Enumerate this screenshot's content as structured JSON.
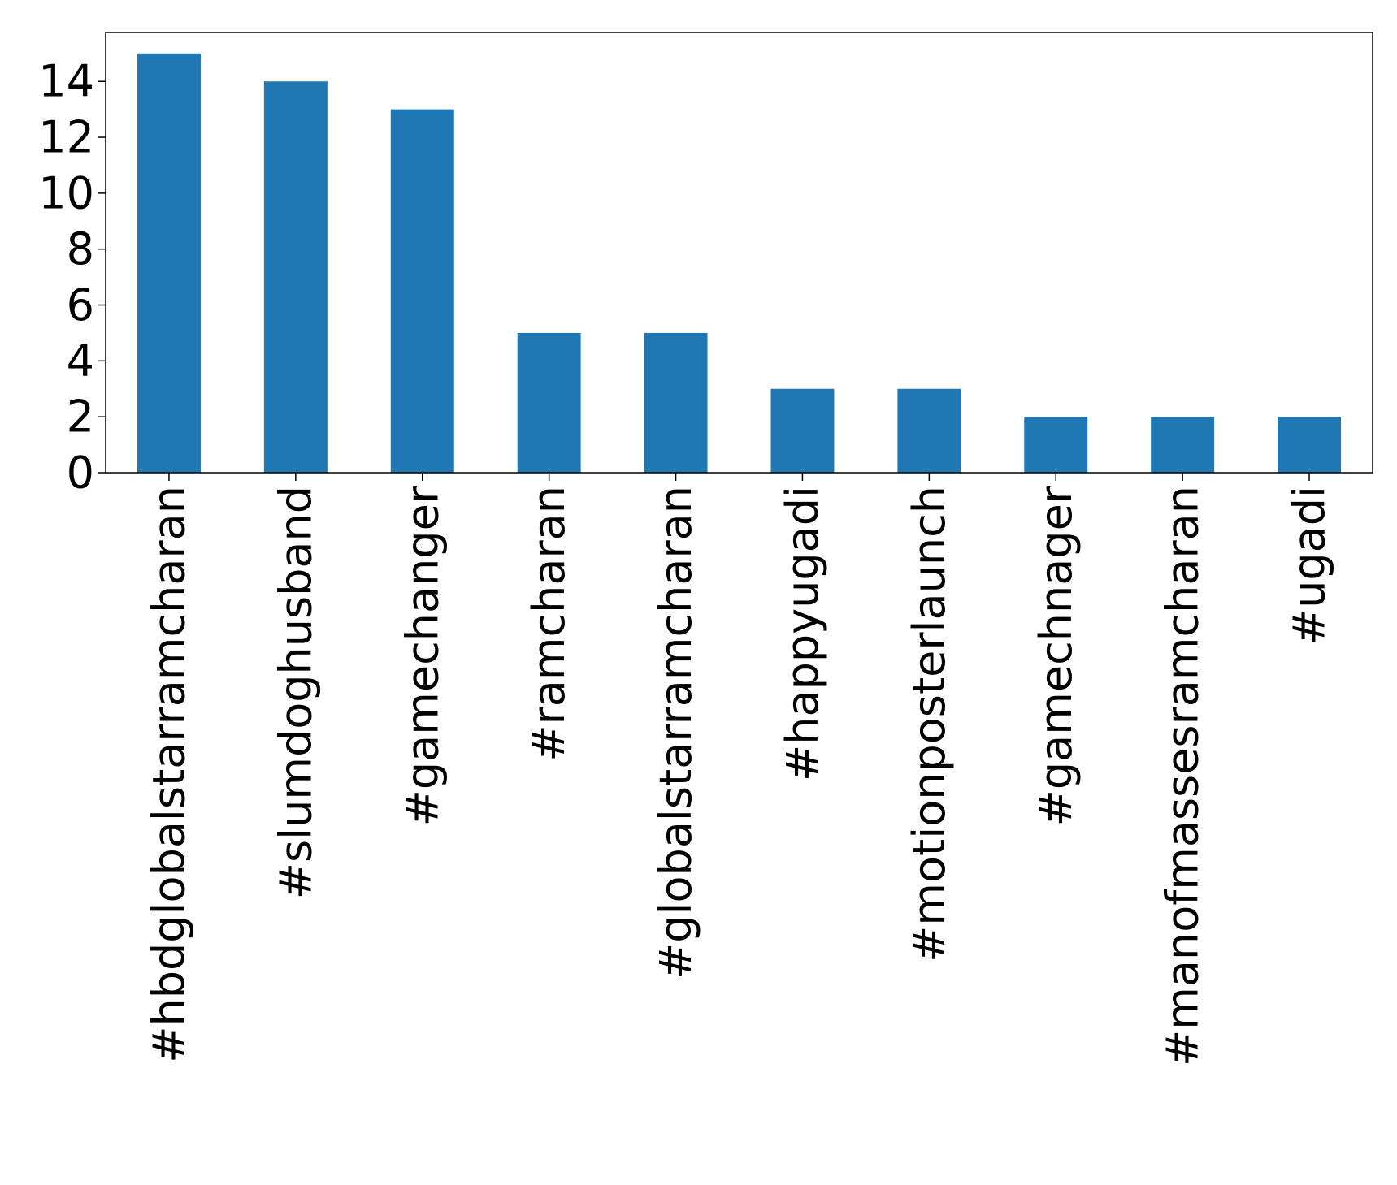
{
  "chart_data": {
    "type": "bar",
    "title": "",
    "xlabel": "",
    "ylabel": "",
    "categories": [
      "#hbdglobalstarramcharan",
      "#slumdoghusband",
      "#gamechanger",
      "#ramcharan",
      "#globalstarramcharan",
      "#happyugadi",
      "#motionposterlaunch",
      "#gamechnager",
      "#manofmassesramcharan",
      "#ugadi"
    ],
    "values": [
      15,
      14,
      13,
      5,
      5,
      3,
      3,
      2,
      2,
      2
    ],
    "ylim": [
      0,
      15.75
    ],
    "yticks": [
      "0",
      "2",
      "4",
      "6",
      "8",
      "10",
      "12",
      "14"
    ],
    "bar_color": "#1f77b4",
    "grid": false,
    "legend": "none"
  }
}
